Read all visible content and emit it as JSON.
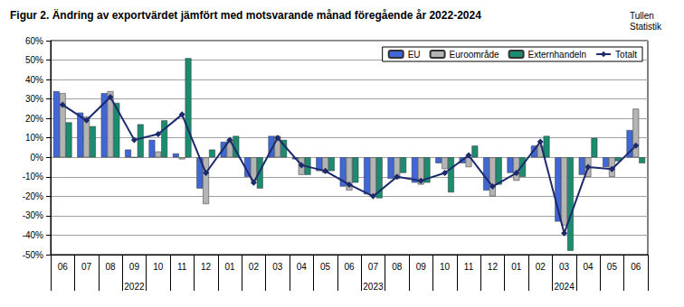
{
  "chart_data": {
    "type": "bar",
    "title": "Figur 2. Ändring av exportvärdet jämfört med motsvarande månad föregående år 2022-2024",
    "source": "Tullen\nStatistik",
    "categories": [
      "06",
      "07",
      "08",
      "09",
      "10",
      "11",
      "12",
      "01",
      "02",
      "03",
      "04",
      "05",
      "06",
      "07",
      "08",
      "09",
      "10",
      "11",
      "12",
      "01",
      "02",
      "03",
      "04",
      "05",
      "06"
    ],
    "year_labels": [
      null,
      null,
      null,
      "2022",
      null,
      null,
      null,
      null,
      null,
      null,
      null,
      null,
      null,
      "2023",
      null,
      null,
      null,
      null,
      null,
      null,
      null,
      "2024",
      null,
      null,
      null
    ],
    "series": [
      {
        "name": "EU",
        "type": "bar",
        "color": "#3f67d8",
        "values": [
          34,
          23,
          33,
          4,
          9,
          2,
          -16,
          8,
          -10,
          11,
          -1,
          -7,
          -15,
          -19,
          -11,
          -13,
          -3,
          -3,
          -17,
          -8,
          6,
          -33,
          -9,
          -5,
          14
        ]
      },
      {
        "name": "Euroområde",
        "type": "bar",
        "color": "#b4b4b4",
        "values": [
          33,
          21,
          34,
          0,
          3,
          -1,
          -24,
          9,
          -12,
          11,
          -9,
          -8,
          -17,
          -20,
          -11,
          -14,
          -6,
          -5,
          -20,
          -12,
          6,
          -35,
          -10,
          -10,
          25
        ]
      },
      {
        "name": "Externhandeln",
        "type": "bar",
        "color": "#1a8c70",
        "values": [
          18,
          16,
          28,
          17,
          19,
          51,
          4,
          11,
          -16,
          9,
          -9,
          -7,
          -13,
          -21,
          -8,
          -13,
          -18,
          6,
          -14,
          -10,
          11,
          -48,
          10,
          -2,
          -3
        ]
      },
      {
        "name": "Totalt",
        "type": "line",
        "color": "#1c2a6b",
        "marker": "diamond",
        "values": [
          27,
          19,
          31,
          9,
          12,
          22,
          -8,
          9,
          -13,
          10,
          -4,
          -7,
          -14,
          -20,
          -10,
          -12,
          -8,
          1,
          -15,
          -8,
          8,
          -39,
          -5,
          -6,
          6
        ]
      }
    ],
    "ylim": [
      -50,
      60
    ],
    "yticks": [
      {
        "value": -50,
        "label": "-50%"
      },
      {
        "value": -40,
        "label": "-40%"
      },
      {
        "value": -30,
        "label": "-30%"
      },
      {
        "value": -20,
        "label": "-20%"
      },
      {
        "value": -10,
        "label": "-10%"
      },
      {
        "value": 0,
        "label": "0%"
      },
      {
        "value": 10,
        "label": "10%"
      },
      {
        "value": 20,
        "label": "20%"
      },
      {
        "value": 30,
        "label": "30%"
      },
      {
        "value": 40,
        "label": "40%"
      },
      {
        "value": 50,
        "label": "50%"
      },
      {
        "value": 60,
        "label": "60%"
      }
    ],
    "grid": true,
    "legend": "top-right"
  }
}
